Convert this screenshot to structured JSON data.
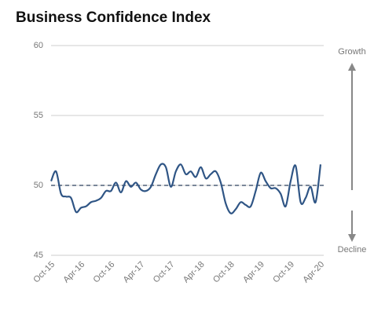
{
  "chart_data": {
    "type": "line",
    "title": "Business Confidence Index",
    "categories": [
      "Oct-15",
      null,
      null,
      null,
      null,
      null,
      "Apr-16",
      null,
      null,
      null,
      null,
      null,
      "Oct-16",
      null,
      null,
      null,
      null,
      null,
      "Apr-17",
      null,
      null,
      null,
      null,
      null,
      "Oct-17",
      null,
      null,
      null,
      null,
      null,
      "Apr-18",
      null,
      null,
      null,
      null,
      null,
      "Oct-18",
      null,
      null,
      null,
      null,
      null,
      "Apr-19",
      null,
      null,
      null,
      null,
      null,
      "Oct-19",
      null,
      null,
      null,
      null,
      null,
      "Apr-20"
    ],
    "series": [
      {
        "name": "Business Confidence Index",
        "color": "#2f5585",
        "values": [
          50.3,
          51.0,
          49.4,
          49.2,
          49.1,
          48.1,
          48.4,
          48.5,
          48.8,
          48.9,
          49.1,
          49.6,
          49.6,
          50.2,
          49.5,
          50.3,
          49.9,
          50.2,
          49.7,
          49.6,
          49.9,
          50.8,
          51.5,
          51.3,
          49.9,
          51.0,
          51.5,
          50.8,
          51.0,
          50.6,
          51.3,
          50.5,
          50.8,
          51.0,
          50.2,
          48.7,
          48.0,
          48.3,
          48.8,
          48.6,
          48.5,
          49.6,
          50.9,
          50.3,
          49.8,
          49.8,
          49.4,
          48.5,
          50.3,
          51.4,
          48.8,
          49.1,
          49.9,
          48.8,
          51.5
        ]
      }
    ],
    "ylim": [
      45,
      60
    ],
    "yticks": [
      45,
      50,
      55,
      60
    ],
    "grid": true,
    "reference_line": 50,
    "annotations": [
      "Growth",
      "Decline"
    ]
  }
}
